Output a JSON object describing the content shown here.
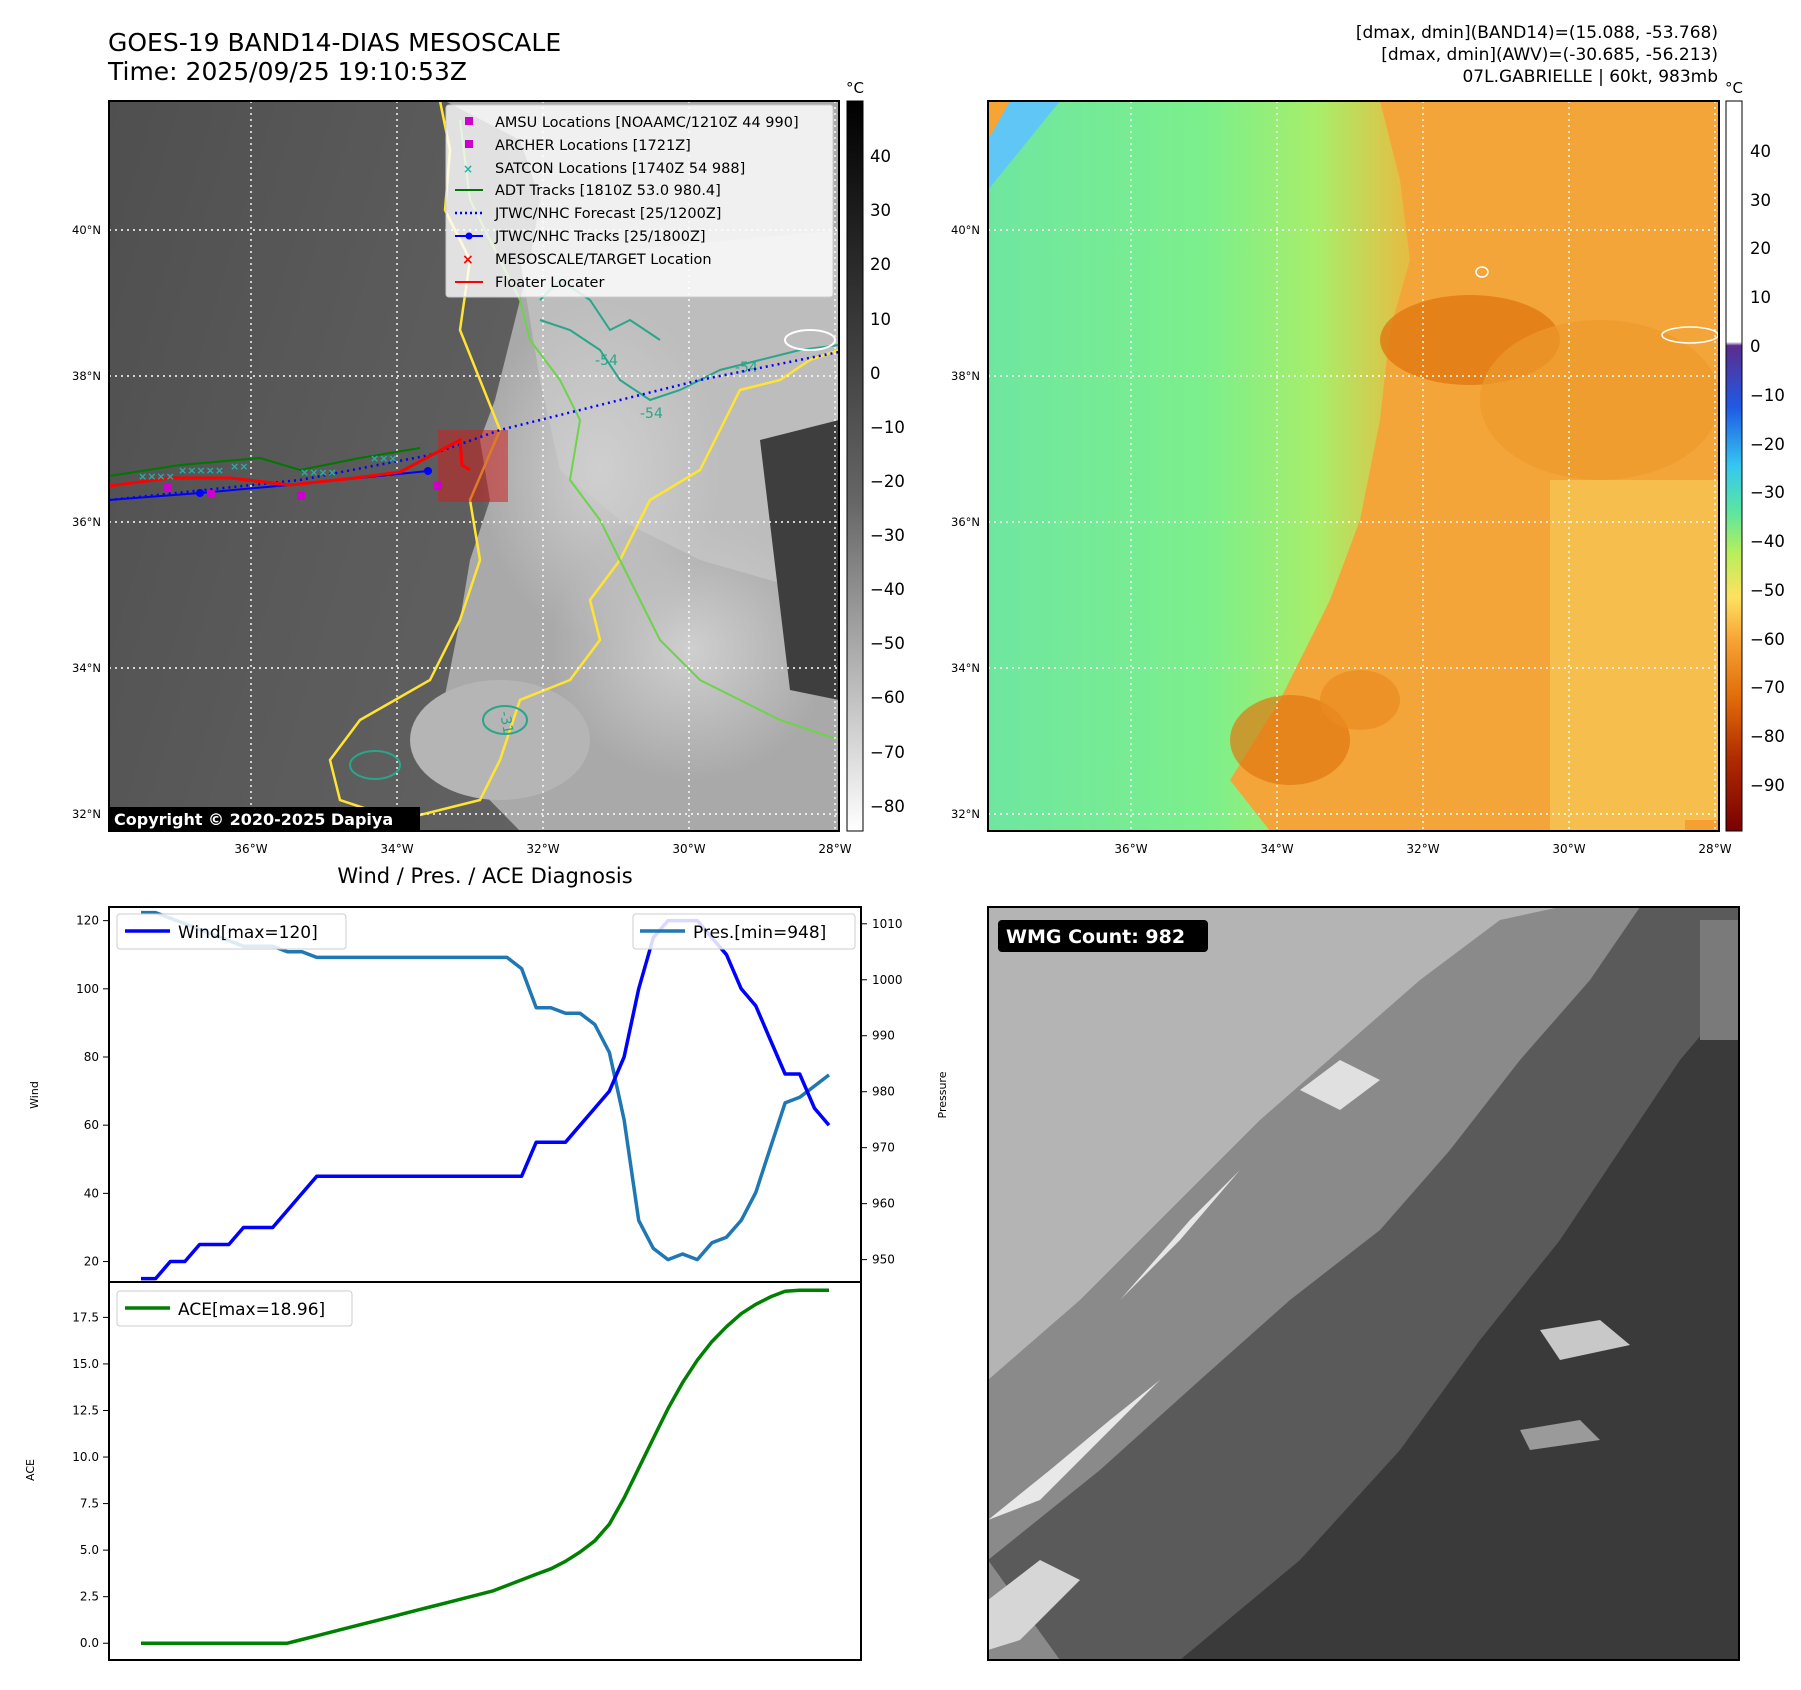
{
  "header": {
    "title": "GOES-19 BAND14-DIAS MESOSCALE",
    "time": "Time: 2025/09/25 19:10:53Z",
    "stats_line1": "[dmax, dmin](BAND14)=(15.088, -53.768)",
    "stats_line2": "[dmax, dmin](AWV)=(-30.685, -56.213)",
    "storm_line": "07L.GABRIELLE | 60kt, 983mb"
  },
  "map_left": {
    "copyright": "Copyright © 2020-2025 Dapiya",
    "lat_labels": [
      "40°N",
      "38°N",
      "36°N",
      "34°N",
      "32°N"
    ],
    "lon_labels": [
      "36°W",
      "34°W",
      "32°W",
      "30°W",
      "28°W"
    ],
    "contour_labels": [
      "-54",
      "-54",
      "-54",
      "-31"
    ],
    "legend": [
      {
        "label": "AMSU Locations [NOAAMC/1210Z 44 990]",
        "color": "#cc00cc",
        "marker": "square"
      },
      {
        "label": "ARCHER Locations [1721Z]",
        "color": "#cc00cc",
        "marker": "square"
      },
      {
        "label": "SATCON Locations [1740Z 54 988]",
        "color": "#20b2aa",
        "marker": "x"
      },
      {
        "label": "ADT Tracks [1810Z 53.0 980.4]",
        "color": "#007700",
        "marker": "line"
      },
      {
        "label": "JTWC/NHC Forecast [25/1200Z]",
        "color": "#0000ff",
        "marker": "dotted"
      },
      {
        "label": "JTWC/NHC Tracks [25/1800Z]",
        "color": "#0000ff",
        "marker": "line-dot"
      },
      {
        "label": "MESOSCALE/TARGET Location",
        "color": "#ff0000",
        "marker": "x"
      },
      {
        "label": "Floater Locater",
        "color": "#ff0000",
        "marker": "line"
      }
    ],
    "colorbar": {
      "unit": "°C",
      "ticks": [
        "40",
        "30",
        "20",
        "10",
        "0",
        "−10",
        "−20",
        "−30",
        "−40",
        "−50",
        "−60",
        "−70",
        "−80"
      ]
    }
  },
  "map_right": {
    "lat_labels": [
      "40°N",
      "38°N",
      "36°N",
      "34°N",
      "32°N"
    ],
    "lon_labels": [
      "36°W",
      "34°W",
      "32°W",
      "30°W",
      "28°W"
    ],
    "colorbar": {
      "unit": "°C",
      "ticks": [
        "40",
        "30",
        "20",
        "10",
        "0",
        "−10",
        "−20",
        "−30",
        "−40",
        "−50",
        "−60",
        "−70",
        "−80",
        "−90"
      ]
    }
  },
  "wmg": {
    "label": "WMG Count: 982"
  },
  "chart_data": [
    {
      "type": "line",
      "title": "Wind / Pres. / ACE Diagnosis",
      "ylabel": "Wind",
      "y2label": "Pressure",
      "ylim": [
        14,
        124
      ],
      "y2lim": [
        946,
        1013
      ],
      "yticks": [
        20,
        40,
        60,
        80,
        100,
        120
      ],
      "y2ticks": [
        950,
        960,
        970,
        980,
        990,
        1000,
        1010
      ],
      "series": [
        {
          "name": "Wind[max=120]",
          "color": "#0000ff",
          "values": [
            15,
            15,
            20,
            20,
            25,
            25,
            25,
            30,
            30,
            30,
            35,
            40,
            45,
            45,
            45,
            45,
            45,
            45,
            45,
            45,
            45,
            45,
            45,
            45,
            45,
            45,
            45,
            55,
            55,
            55,
            60,
            65,
            70,
            80,
            100,
            115,
            120,
            120,
            120,
            115,
            110,
            100,
            95,
            85,
            75,
            75,
            65,
            60
          ]
        },
        {
          "name": "Pres.[min=948]",
          "color": "#1f77b4",
          "axis": "right",
          "values": [
            1012,
            1012,
            1011,
            1010,
            1009,
            1008,
            1007,
            1006,
            1006,
            1006,
            1005,
            1005,
            1004,
            1004,
            1004,
            1004,
            1004,
            1004,
            1004,
            1004,
            1004,
            1004,
            1004,
            1004,
            1004,
            1004,
            1002,
            995,
            995,
            994,
            994,
            992,
            987,
            975,
            957,
            952,
            950,
            951,
            950,
            953,
            954,
            957,
            962,
            970,
            978,
            979,
            981,
            983
          ]
        }
      ]
    },
    {
      "type": "line",
      "ylabel": "ACE",
      "ylim": [
        -0.9,
        19.4
      ],
      "yticks": [
        "0.0",
        "2.5",
        "5.0",
        "7.5",
        "10.0",
        "12.5",
        "15.0",
        "17.5"
      ],
      "series": [
        {
          "name": "ACE[max=18.96]",
          "color": "#008000",
          "values": [
            0,
            0,
            0,
            0,
            0,
            0,
            0,
            0,
            0,
            0,
            0,
            0.2,
            0.4,
            0.6,
            0.8,
            1.0,
            1.2,
            1.4,
            1.6,
            1.8,
            2.0,
            2.2,
            2.4,
            2.6,
            2.8,
            3.1,
            3.4,
            3.7,
            4.0,
            4.4,
            4.9,
            5.5,
            6.4,
            7.8,
            9.4,
            11.0,
            12.6,
            14.0,
            15.2,
            16.2,
            17.0,
            17.7,
            18.2,
            18.6,
            18.9,
            18.96,
            18.96,
            18.96
          ]
        }
      ]
    }
  ]
}
